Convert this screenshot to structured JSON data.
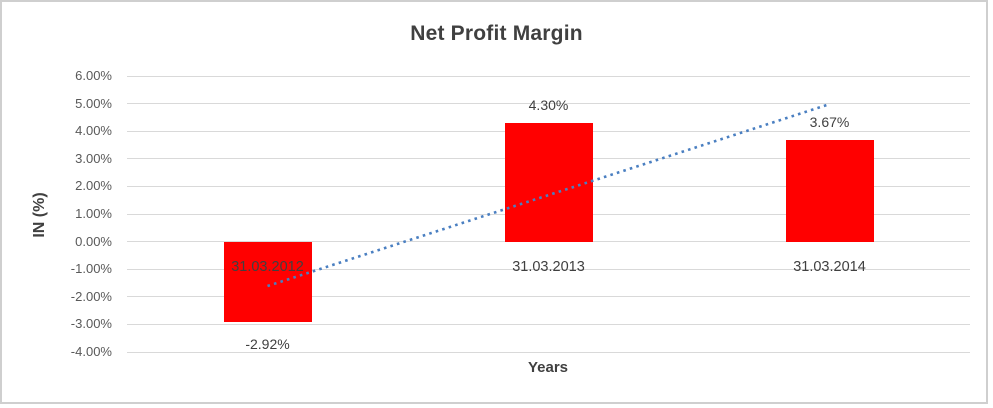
{
  "chart_data": {
    "type": "bar",
    "title": "Net Profit Margin",
    "xlabel": "Years",
    "ylabel": "IN (%)",
    "categories": [
      "31.03.2012",
      "31.03.2013",
      "31.03.2014"
    ],
    "values": [
      -2.92,
      4.3,
      3.67
    ],
    "data_labels": [
      "-2.92%",
      "4.30%",
      "3.67%"
    ],
    "ylim": [
      -4,
      6
    ],
    "y_tick_step": 1,
    "y_tick_labels": [
      "6.00%",
      "5.00%",
      "4.00%",
      "3.00%",
      "2.00%",
      "1.00%",
      "0.00%",
      "-1.00%",
      "-2.00%",
      "-3.00%",
      "-4.00%"
    ],
    "grid": "horizontal",
    "legend_position": "none",
    "bar_color": "#ff0000",
    "trendline": {
      "type": "linear",
      "style": "dotted",
      "color": "#4a7fc1",
      "start_category_index": 0,
      "end_category_index": 2,
      "start_value": -1.61,
      "end_value": 4.98
    }
  }
}
